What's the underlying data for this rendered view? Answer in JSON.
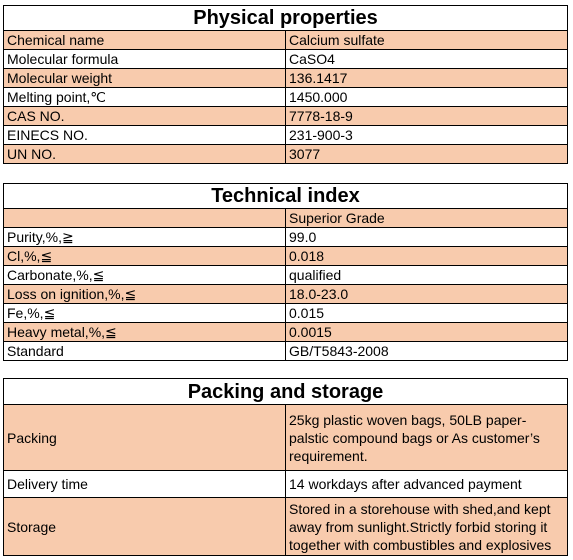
{
  "physical_properties": {
    "title": "Physical properties",
    "rows": [
      [
        "Chemical name",
        "Calcium sulfate"
      ],
      [
        "Molecular formula",
        "CaSO4"
      ],
      [
        "Molecular weight",
        "136.1417"
      ],
      [
        "Melting point,℃",
        "1450.000"
      ],
      [
        "CAS NO.",
        "7778-18-9"
      ],
      [
        "EINECS NO.",
        "231-900-3"
      ],
      [
        "UN NO.",
        "3077"
      ]
    ]
  },
  "technical_index": {
    "title": "Technical index",
    "grade": "Superior Grade",
    "rows": [
      [
        "Purity,%,≧",
        "99.0"
      ],
      [
        "Cl,%,≦",
        "0.018"
      ],
      [
        "Carbonate,%,≦",
        "qualified"
      ],
      [
        "Loss on ignition,%,≦",
        "18.0-23.0"
      ],
      [
        "Fe,%,≦",
        "0.015"
      ],
      [
        "Heavy metal,%,≦",
        "0.0015"
      ],
      [
        "Standard",
        "GB/T5843-2008"
      ]
    ]
  },
  "packing_storage": {
    "title": "Packing and storage",
    "rows": [
      [
        "Packing",
        "25kg plastic woven bags, 50LB paper-palstic compound bags or As customer’s requirement."
      ],
      [
        "Delivery time",
        "14 workdays after advanced payment"
      ],
      [
        "Storage",
        "Stored in a storehouse with shed,and kept away from sunlight.Strictly forbid storing it together with combustibles and explosives"
      ]
    ]
  }
}
